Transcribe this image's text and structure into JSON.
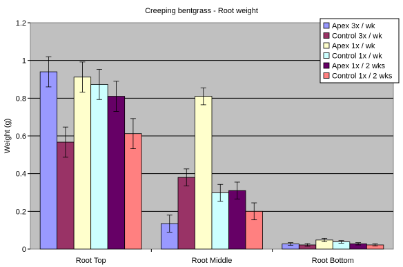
{
  "chart_data": {
    "type": "bar",
    "title": "Creeping bentgrass - Root weight",
    "xlabel": "",
    "ylabel": "Weight (g)",
    "ylim": [
      0,
      1.2
    ],
    "yticks": [
      "0",
      "0.2",
      "0.4",
      "0.6",
      "0.8",
      "1",
      "1.2"
    ],
    "grid": true,
    "legend_position": "top-right",
    "categories": [
      "Root Top",
      "Root Middle",
      "Root Bottom"
    ],
    "series": [
      {
        "name": "Apex 3x / wk",
        "color": "#9999ff",
        "values": [
          0.94,
          0.135,
          0.027
        ],
        "errors": [
          0.08,
          0.045,
          0.007
        ]
      },
      {
        "name": "Control 3x / wk",
        "color": "#993366",
        "values": [
          0.567,
          0.38,
          0.022
        ],
        "errors": [
          0.08,
          0.045,
          0.007
        ]
      },
      {
        "name": "Apex 1x / wk",
        "color": "#ffffcc",
        "values": [
          0.912,
          0.81,
          0.048
        ],
        "errors": [
          0.08,
          0.045,
          0.009
        ]
      },
      {
        "name": "Control 1x / wk",
        "color": "#ccffff",
        "values": [
          0.873,
          0.298,
          0.038
        ],
        "errors": [
          0.08,
          0.045,
          0.007
        ]
      },
      {
        "name": "Apex 1x / 2 wks",
        "color": "#660066",
        "values": [
          0.81,
          0.31,
          0.028
        ],
        "errors": [
          0.08,
          0.045,
          0.006
        ]
      },
      {
        "name": "Control 1x / 2 wks",
        "color": "#ff8080",
        "values": [
          0.612,
          0.2,
          0.022
        ],
        "errors": [
          0.08,
          0.045,
          0.006
        ]
      }
    ]
  }
}
